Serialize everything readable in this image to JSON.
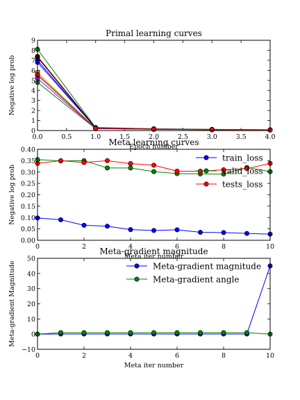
{
  "chart_data": [
    {
      "type": "line",
      "title": "Primal learning curves",
      "xlabel": "Epoch number",
      "ylabel": "Negative log prob",
      "xlim": [
        0,
        4
      ],
      "ylim": [
        0,
        9
      ],
      "xticks": [
        "0.0",
        "0.5",
        "1.0",
        "1.5",
        "2.0",
        "2.5",
        "3.0",
        "3.5",
        "4.0"
      ],
      "yticks": [
        "0",
        "1",
        "2",
        "3",
        "4",
        "5",
        "6",
        "7",
        "8",
        "9"
      ],
      "x": [
        0,
        1,
        2,
        3,
        4
      ],
      "series": [
        {
          "color": "#0000ff",
          "values": [
            7.0,
            0.25,
            0.15,
            0.1,
            0.07
          ]
        },
        {
          "color": "#008000",
          "values": [
            8.1,
            0.3,
            0.18,
            0.12,
            0.08
          ]
        },
        {
          "color": "#ff0000",
          "values": [
            7.4,
            0.28,
            0.16,
            0.1,
            0.07
          ]
        },
        {
          "color": "#00bfbf",
          "values": [
            5.5,
            0.18,
            0.12,
            0.08,
            0.06
          ]
        },
        {
          "color": "#bf00bf",
          "values": [
            5.2,
            0.2,
            0.13,
            0.09,
            0.06
          ]
        },
        {
          "color": "#bfbf00",
          "values": [
            5.8,
            0.22,
            0.14,
            0.09,
            0.06
          ]
        },
        {
          "color": "#000000",
          "values": [
            7.3,
            0.26,
            0.15,
            0.1,
            0.07
          ]
        },
        {
          "color": "#008000",
          "values": [
            4.8,
            0.19,
            0.12,
            0.08,
            0.05
          ]
        },
        {
          "color": "#0000ff",
          "values": [
            6.8,
            0.24,
            0.14,
            0.09,
            0.06
          ]
        },
        {
          "color": "#ff0000",
          "values": [
            5.6,
            0.21,
            0.13,
            0.08,
            0.06
          ]
        }
      ]
    },
    {
      "type": "line",
      "title": "Meta learning curves",
      "xlabel": "Meta iter number",
      "ylabel": "Negative log prob",
      "xlim": [
        0,
        10
      ],
      "ylim": [
        0,
        0.4
      ],
      "xticks": [
        "0",
        "2",
        "4",
        "6",
        "8",
        "10"
      ],
      "yticks": [
        "0.00",
        "0.05",
        "0.10",
        "0.15",
        "0.20",
        "0.25",
        "0.30",
        "0.35",
        "0.40"
      ],
      "legend": "top-right",
      "x": [
        0,
        1,
        2,
        3,
        4,
        5,
        6,
        7,
        8,
        9,
        10
      ],
      "series": [
        {
          "name": "train_loss",
          "color": "#0000ff",
          "values": [
            0.098,
            0.09,
            0.066,
            0.062,
            0.047,
            0.043,
            0.046,
            0.035,
            0.034,
            0.03,
            0.027
          ]
        },
        {
          "name": "valid_loss",
          "color": "#008000",
          "values": [
            0.355,
            0.349,
            0.35,
            0.318,
            0.318,
            0.302,
            0.293,
            0.292,
            0.291,
            0.32,
            0.302
          ]
        },
        {
          "name": "tests_loss",
          "color": "#ff0000",
          "values": [
            0.338,
            0.35,
            0.342,
            0.35,
            0.337,
            0.33,
            0.304,
            0.304,
            0.31,
            0.315,
            0.338
          ]
        }
      ]
    },
    {
      "type": "line",
      "title": "Meta-gradient magnitude",
      "xlabel": "Meta iter number",
      "ylabel": "Meta-gradient Magnitude",
      "xlim": [
        0,
        10
      ],
      "ylim": [
        -10,
        50
      ],
      "xticks": [
        "0",
        "2",
        "4",
        "6",
        "8",
        "10"
      ],
      "yticks": [
        "−10",
        "0",
        "10",
        "20",
        "30",
        "40",
        "50"
      ],
      "legend": "top-right",
      "x": [
        0,
        1,
        2,
        3,
        4,
        5,
        6,
        7,
        8,
        9,
        10
      ],
      "series": [
        {
          "name": "Meta-gradient magnitude",
          "color": "#0000ff",
          "values": [
            0,
            0.1,
            0.1,
            0.1,
            0.1,
            0.1,
            0.1,
            0.1,
            0.1,
            0.1,
            45
          ]
        },
        {
          "name": "Meta-gradient angle",
          "color": "#008000",
          "values": [
            0,
            1,
            1,
            1,
            1,
            1,
            1,
            1,
            1,
            1,
            0
          ]
        }
      ]
    }
  ]
}
